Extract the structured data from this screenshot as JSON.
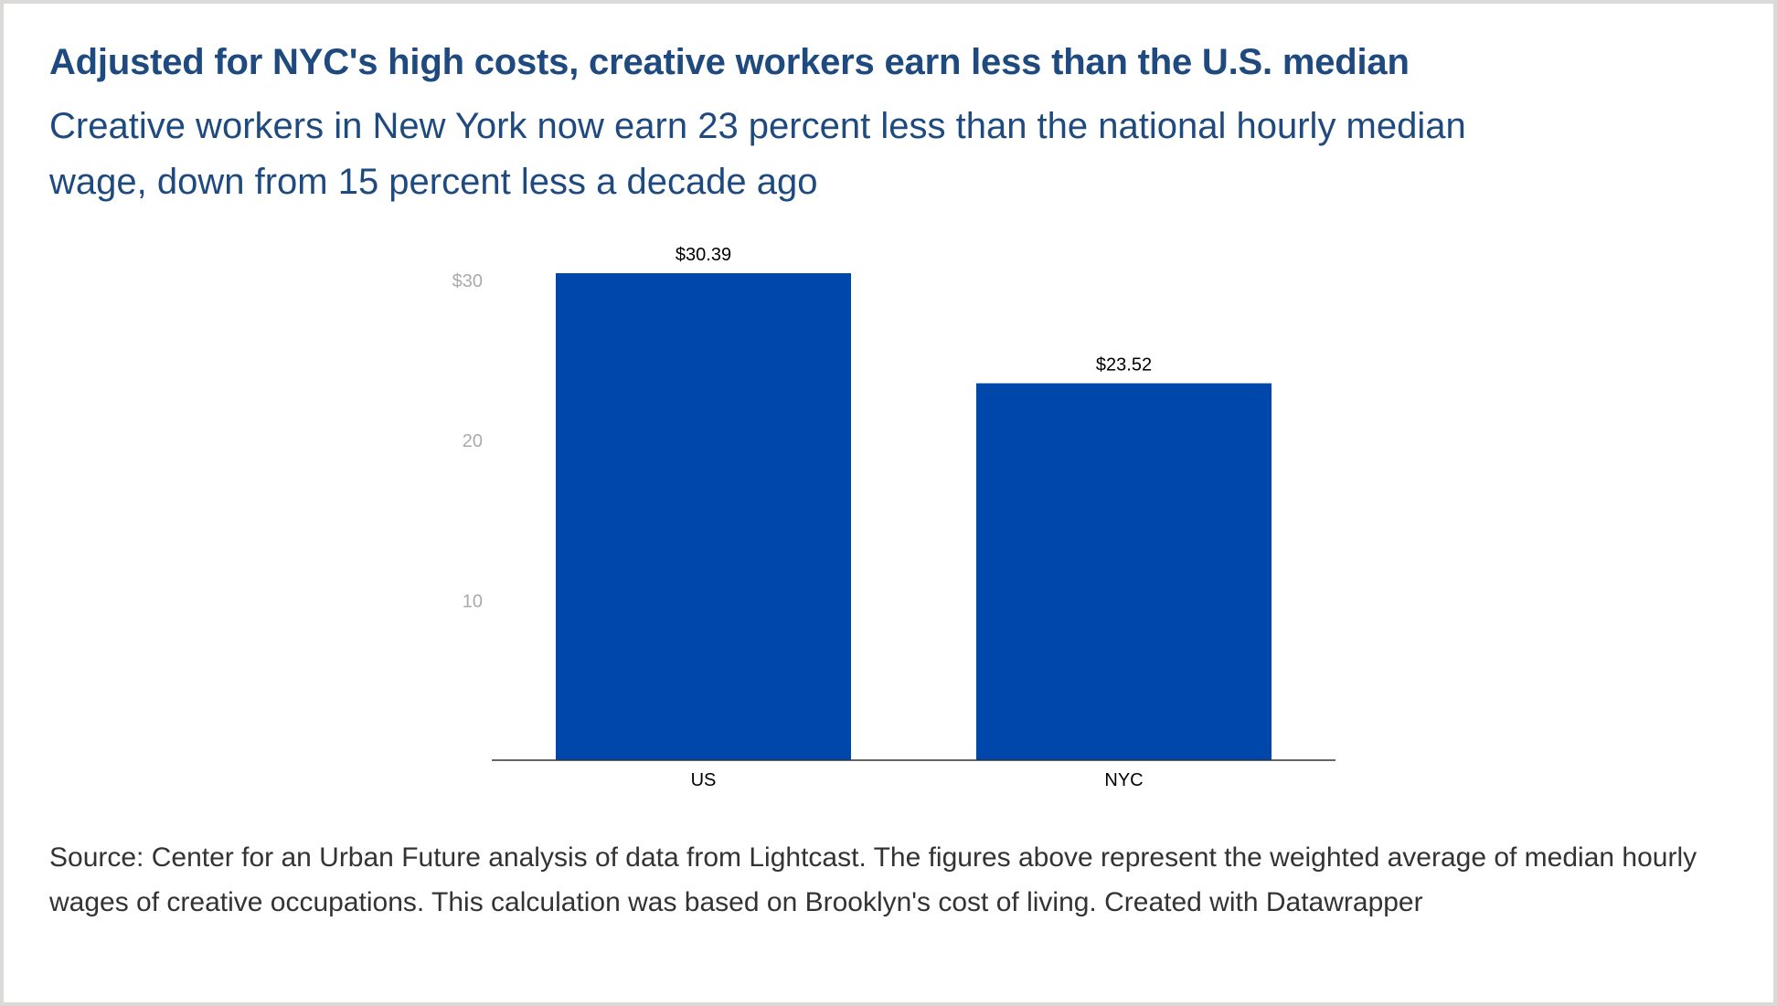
{
  "title": "Adjusted for NYC's high costs, creative workers earn less than the U.S. median",
  "subtitle": "Creative workers in New York now earn 23 percent less than the national hourly median wage, down from 15 percent less a decade ago",
  "source": "Source: Center for an Urban Future analysis of data from Lightcast. The figures above represent the weighted average of median hourly wages of creative occupations. This calculation was based on Brooklyn's cost of living. Created with Datawrapper",
  "colors": {
    "bar": "#0047ab",
    "title": "#1f4a7f",
    "tick": "#aaaaaa",
    "baseline": "#333333",
    "border": "#dcd9d9"
  },
  "chart_data": {
    "type": "bar",
    "categories": [
      "US",
      "NYC"
    ],
    "values": [
      30.39,
      23.52
    ],
    "data_labels": [
      "$30.39",
      "$23.52"
    ],
    "y_ticks": [
      10,
      20,
      30
    ],
    "y_tick_labels": [
      "10",
      "20",
      "$30"
    ],
    "ylim": [
      0,
      30.39
    ],
    "grid": false,
    "legend": "none"
  }
}
